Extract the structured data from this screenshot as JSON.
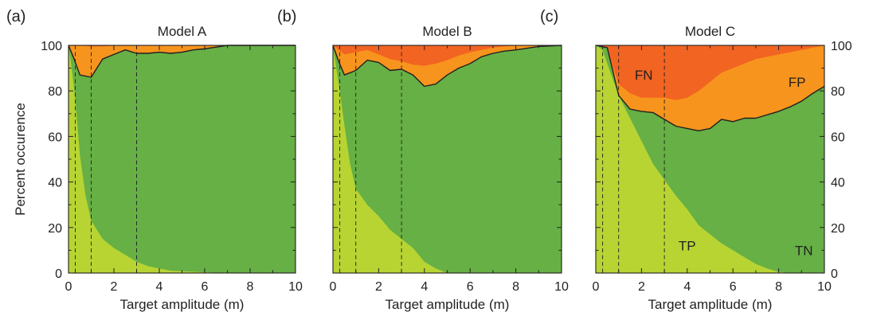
{
  "figure": {
    "ylabel": "Percent occurence",
    "xlabel": "Target amplitude (m)",
    "colors": {
      "TP": "#b7d433",
      "TN": "#66b045",
      "FP": "#f7941d",
      "FN": "#f26422",
      "boundary": "#231f20"
    }
  },
  "chart_data": [
    {
      "type": "area",
      "panel_label": "(a)",
      "title": "Model A",
      "xlabel": "Target amplitude (m)",
      "ylabel": "Percent occurence",
      "xlim": [
        0,
        10
      ],
      "ylim": [
        0,
        100
      ],
      "xticks": [
        "0",
        "2",
        "4",
        "6",
        "8",
        "10"
      ],
      "yticks": [
        "0",
        "20",
        "40",
        "60",
        "80",
        "100"
      ],
      "reference_lines_x": [
        0.3,
        1,
        3
      ],
      "series": [
        {
          "key": "TP",
          "x": [
            0,
            0.1,
            0.2,
            0.3,
            0.5,
            0.75,
            1,
            1.5,
            2,
            2.5,
            3,
            3.5,
            4,
            4.5,
            5,
            6,
            7,
            8,
            10
          ],
          "y": [
            100,
            93,
            85,
            76,
            52,
            34,
            23,
            15,
            11,
            8,
            5,
            3,
            2,
            1,
            0.8,
            0.3,
            0,
            0,
            0
          ]
        },
        {
          "key": "TN",
          "x": [
            0,
            0.25,
            0.5,
            1,
            1.5,
            2,
            2.5,
            3,
            3.5,
            4,
            4.5,
            5,
            5.5,
            6,
            7,
            8,
            10
          ],
          "y": [
            100,
            94,
            87,
            86,
            94,
            96,
            98,
            96.5,
            96.5,
            97,
            96.5,
            97,
            98,
            98.5,
            100,
            100,
            100
          ]
        },
        {
          "key": "FP",
          "x": [
            0,
            0.25,
            0.5,
            1,
            1.5,
            2,
            2.5,
            3,
            3.5,
            4,
            4.5,
            5,
            5.5,
            6,
            7,
            10
          ],
          "y": [
            100,
            100,
            100,
            99.5,
            99.5,
            100,
            100,
            100,
            100,
            100,
            100,
            100,
            100,
            100,
            100,
            100
          ]
        },
        {
          "key": "FN",
          "x": [
            0,
            10
          ],
          "y": [
            100,
            100
          ]
        }
      ],
      "annotations": []
    },
    {
      "type": "area",
      "panel_label": "(b)",
      "title": "Model B",
      "xlabel": "Target amplitude (m)",
      "ylabel": "",
      "xlim": [
        0,
        10
      ],
      "ylim": [
        0,
        100
      ],
      "xticks": [
        "0",
        "2",
        "4",
        "6",
        "8",
        "10"
      ],
      "yticks": [],
      "reference_lines_x": [
        0.3,
        1,
        3
      ],
      "series": [
        {
          "key": "TP",
          "x": [
            0,
            0.1,
            0.3,
            0.5,
            0.75,
            1,
            1.5,
            2,
            2.5,
            3,
            3.5,
            4,
            4.5,
            5,
            5.5,
            10
          ],
          "y": [
            100,
            93,
            80,
            65,
            48,
            37,
            30,
            25,
            19,
            15,
            11,
            5,
            2,
            0,
            0,
            0
          ]
        },
        {
          "key": "TN",
          "x": [
            0,
            0.25,
            0.5,
            1,
            1.5,
            2,
            2.5,
            3,
            3.5,
            4,
            4.5,
            5,
            5.5,
            6,
            6.5,
            7,
            7.5,
            8,
            9,
            10
          ],
          "y": [
            100,
            93,
            87,
            89,
            93.5,
            92.5,
            89,
            89.5,
            87,
            82,
            83,
            87,
            90,
            92,
            95,
            96.5,
            97.5,
            98,
            99.5,
            100
          ]
        },
        {
          "key": "FP",
          "x": [
            0,
            0.25,
            0.5,
            1,
            1.5,
            2,
            2.5,
            3,
            3.5,
            4,
            4.5,
            5,
            5.5,
            6,
            7,
            8,
            9,
            10
          ],
          "y": [
            100,
            98,
            96,
            97,
            98,
            96,
            94,
            93,
            91.5,
            91,
            92,
            93.5,
            95.5,
            97,
            99,
            100,
            100,
            100
          ]
        },
        {
          "key": "FN",
          "x": [
            0,
            10
          ],
          "y": [
            100,
            100
          ]
        }
      ],
      "annotations": []
    },
    {
      "type": "area",
      "panel_label": "(c)",
      "title": "Model C",
      "xlabel": "Target amplitude (m)",
      "ylabel": "",
      "xlim": [
        0,
        10
      ],
      "ylim": [
        0,
        100
      ],
      "xticks": [
        "0",
        "2",
        "4",
        "6",
        "8",
        "10"
      ],
      "yticks": [
        "0",
        "20",
        "40",
        "60",
        "80",
        "100"
      ],
      "reference_lines_x": [
        0.3,
        1,
        3
      ],
      "series": [
        {
          "key": "TP",
          "x": [
            0,
            0.3,
            0.5,
            1,
            1.5,
            2,
            2.5,
            3,
            3.5,
            4,
            4.5,
            5,
            5.5,
            6,
            6.5,
            7,
            7.5,
            8,
            8.5,
            9,
            9.5,
            10
          ],
          "y": [
            100,
            98,
            92,
            78,
            68,
            58,
            48,
            41,
            34,
            28,
            21,
            17,
            13,
            10,
            7,
            4,
            2,
            0.5,
            0,
            0,
            0,
            0
          ]
        },
        {
          "key": "TN",
          "x": [
            0,
            0.5,
            1,
            1.5,
            2,
            2.5,
            3,
            3.5,
            4,
            4.5,
            5,
            5.5,
            6,
            6.5,
            7,
            7.5,
            8,
            8.5,
            9,
            9.5,
            10
          ],
          "y": [
            100,
            99,
            78,
            72,
            71,
            70.5,
            67.5,
            64.5,
            63.5,
            62.5,
            63.5,
            67.5,
            66.5,
            68,
            68,
            69.5,
            71,
            73,
            75.5,
            79,
            82
          ]
        },
        {
          "key": "FP",
          "x": [
            0,
            0.5,
            1,
            1.5,
            2,
            2.5,
            3,
            3.5,
            4,
            4.5,
            5,
            5.5,
            6,
            6.5,
            7,
            7.5,
            8,
            8.5,
            9,
            9.5,
            10
          ],
          "y": [
            100,
            98,
            83,
            79,
            77,
            77,
            77,
            76,
            77,
            80,
            84,
            88,
            90,
            92,
            94,
            95,
            96,
            97,
            98,
            99,
            100
          ]
        },
        {
          "key": "FN",
          "x": [
            0,
            10
          ],
          "y": [
            100,
            100
          ]
        }
      ],
      "annotations": [
        {
          "text": "FN",
          "x": 2.1,
          "y": 87
        },
        {
          "text": "FP",
          "x": 8.8,
          "y": 84
        },
        {
          "text": "TP",
          "x": 4.0,
          "y": 12
        },
        {
          "text": "TN",
          "x": 9.1,
          "y": 10
        }
      ]
    }
  ]
}
